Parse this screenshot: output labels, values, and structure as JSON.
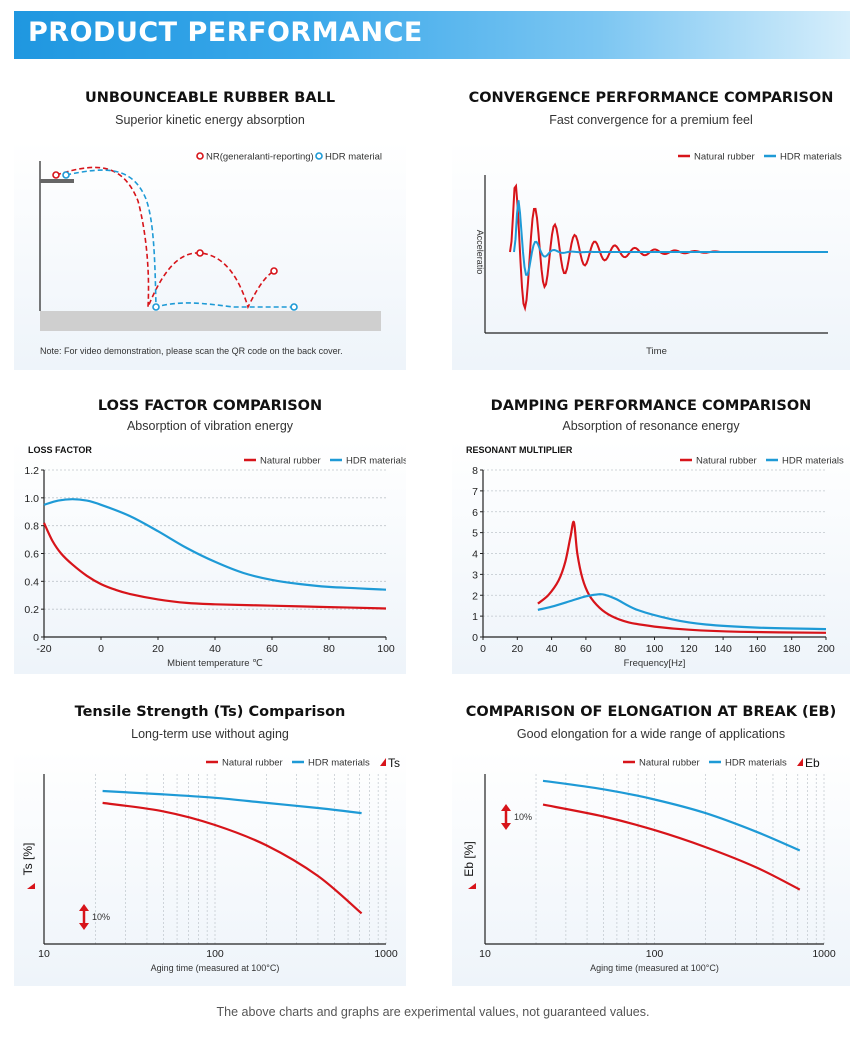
{
  "header": {
    "title": "PRODUCT PERFORMANCE"
  },
  "colors": {
    "red": "#d7141a",
    "blue": "#1e9ad6",
    "header": "#2a9fe6",
    "grid": "#bfc6cc"
  },
  "sections": {
    "ball": {
      "title": "UNBOUNCEABLE RUBBER BALL",
      "subtitle": "Superior kinetic energy absorption",
      "legend_red": "NR(generalanti-reporting)",
      "legend_blue": "HDR material",
      "note": "Note: For video demonstration, please scan the QR code on the back cover."
    },
    "convergence": {
      "title": "CONVERGENCE PERFORMANCE COMPARISON",
      "subtitle": "Fast convergence for a premium feel"
    },
    "loss": {
      "title": "LOSS FACTOR COMPARISON",
      "subtitle": "Absorption of vibration energy"
    },
    "damping": {
      "title": "DAMPING PERFORMANCE COMPARISON",
      "subtitle": "Absorption of resonance energy"
    },
    "tensile": {
      "title": "Tensile Strength (Ts) Comparison",
      "subtitle": "Long-term use without aging"
    },
    "elongation": {
      "title": "COMPARISON OF ELONGATION AT BREAK (EB)",
      "subtitle": "Good elongation for a wide range of applications"
    }
  },
  "footer": {
    "text": "The above charts and graphs are experimental values, not guaranteed values."
  },
  "chart_data": [
    {
      "type": "line",
      "id": "convergence",
      "xlabel": "Time",
      "ylabel": "Acceleratio",
      "series": [
        {
          "name": "Natural rubber",
          "description": "slowly decaying oscillation"
        },
        {
          "name": "HDR materials",
          "description": "converges within about one cycle"
        }
      ]
    },
    {
      "type": "line",
      "id": "loss",
      "ylabel": "LOSS FACTOR",
      "xlabel": "Mbient temperature ℃",
      "xlim": [
        -20,
        100
      ],
      "ylim": [
        0,
        1.2
      ],
      "xticks": [
        -20,
        0,
        20,
        40,
        60,
        80,
        100
      ],
      "yticks": [
        0,
        0.2,
        0.4,
        0.6,
        0.8,
        1.0,
        1.2
      ],
      "ytick_labels": [
        "0",
        "0.2",
        "0.4",
        "0.6",
        "0.8",
        "1.0",
        "1.2"
      ],
      "series": [
        {
          "name": "Natural rubber",
          "x": [
            -20,
            -17,
            -14,
            -10,
            -5,
            0,
            5,
            10,
            20,
            30,
            40,
            60,
            80,
            100
          ],
          "y": [
            0.82,
            0.69,
            0.6,
            0.52,
            0.44,
            0.38,
            0.34,
            0.31,
            0.27,
            0.245,
            0.235,
            0.225,
            0.215,
            0.205
          ]
        },
        {
          "name": "HDR materials",
          "x": [
            -20,
            -15,
            -10,
            -5,
            0,
            10,
            20,
            30,
            40,
            50,
            60,
            70,
            80,
            90,
            100
          ],
          "y": [
            0.95,
            0.98,
            0.99,
            0.98,
            0.95,
            0.87,
            0.76,
            0.64,
            0.54,
            0.46,
            0.41,
            0.38,
            0.36,
            0.35,
            0.34
          ]
        }
      ]
    },
    {
      "type": "line",
      "id": "damping",
      "ylabel": "RESONANT MULTIPLIER",
      "xlabel": "Frequency[Hz]",
      "xlim": [
        0,
        200
      ],
      "ylim": [
        0,
        8
      ],
      "xticks": [
        0,
        20,
        40,
        60,
        80,
        100,
        120,
        140,
        160,
        180,
        200
      ],
      "yticks": [
        0,
        1,
        2,
        3,
        4,
        5,
        6,
        7,
        8
      ],
      "series": [
        {
          "name": "Natural rubber",
          "x": [
            32,
            38,
            44,
            48,
            51,
            53,
            55,
            58,
            62,
            68,
            75,
            85,
            100,
            120,
            150,
            200
          ],
          "y": [
            1.6,
            2.0,
            2.7,
            3.6,
            4.8,
            5.5,
            4.0,
            2.8,
            2.0,
            1.4,
            1.0,
            0.7,
            0.5,
            0.35,
            0.25,
            0.2
          ]
        },
        {
          "name": "HDR materials",
          "x": [
            32,
            40,
            50,
            60,
            68,
            72,
            78,
            90,
            110,
            130,
            160,
            200
          ],
          "y": [
            1.3,
            1.45,
            1.7,
            1.95,
            2.05,
            2.0,
            1.8,
            1.3,
            0.85,
            0.6,
            0.45,
            0.38
          ]
        }
      ]
    },
    {
      "type": "line",
      "id": "tensile",
      "xscale": "log",
      "ylabel": "Ts [%]",
      "xlabel": "Aging time (measured at 100°C)",
      "xlim": [
        10,
        1000
      ],
      "xticks": [
        10,
        100,
        1000
      ],
      "scale_note": "10%",
      "legend_extra": "Ts",
      "series": [
        {
          "name": "Natural rubber",
          "x": [
            22,
            50,
            100,
            200,
            400,
            720
          ],
          "y": [
            83,
            78,
            70,
            58,
            40,
            18
          ]
        },
        {
          "name": "HDR materials",
          "x": [
            22,
            50,
            100,
            200,
            400,
            720
          ],
          "y": [
            90,
            88,
            86,
            83,
            80,
            77
          ]
        }
      ]
    },
    {
      "type": "line",
      "id": "elongation",
      "xscale": "log",
      "ylabel": "Eb [%]",
      "xlabel": "Aging time (measured at 100°C)",
      "xlim": [
        10,
        1000
      ],
      "xticks": [
        10,
        100,
        1000
      ],
      "scale_note": "10%",
      "legend_extra": "Eb",
      "series": [
        {
          "name": "Natural rubber",
          "x": [
            22,
            50,
            100,
            200,
            400,
            720
          ],
          "y": [
            82,
            75,
            67,
            57,
            45,
            32
          ]
        },
        {
          "name": "HDR materials",
          "x": [
            22,
            50,
            100,
            200,
            400,
            720
          ],
          "y": [
            96,
            91,
            85,
            77,
            66,
            55
          ]
        }
      ]
    }
  ]
}
